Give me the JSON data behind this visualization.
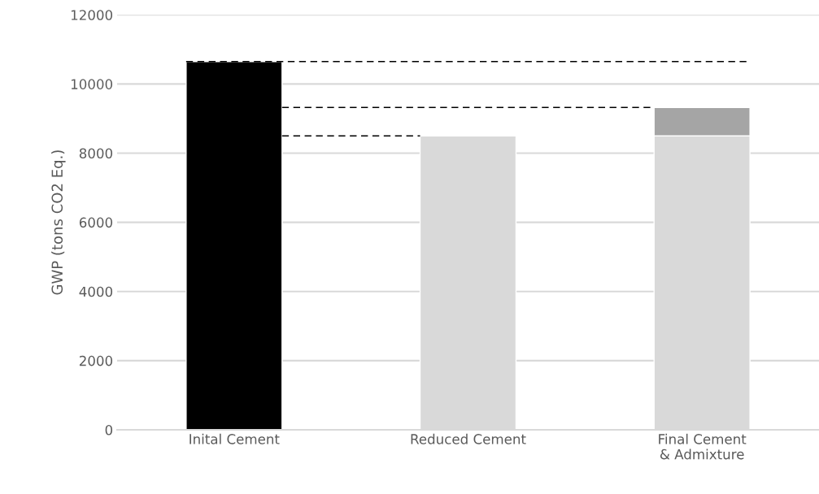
{
  "chart_data": {
    "type": "bar",
    "stacked": true,
    "categories": [
      "Inital Cement",
      "Reduced Cement",
      "Final Cement\n& Admixture"
    ],
    "ylabel": "GWP (tons CO2 Eq.)",
    "series": [
      {
        "colors": [
          "#000000",
          "#d9d9d9",
          "#d9d9d9"
        ],
        "values": [
          10650,
          8500,
          8500
        ]
      },
      {
        "color": "#a5a5a5",
        "values": [
          null,
          null,
          820
        ]
      }
    ],
    "ref_lines": [
      {
        "axis": "y",
        "value": 10650,
        "color": "#000000",
        "line_style": "dashed"
      },
      {
        "axis": "y",
        "value": 9320,
        "color": "#000000",
        "line_style": "dashed"
      },
      {
        "axis": "y",
        "value": 8500,
        "color": "#000000",
        "line_style": "dashed"
      }
    ],
    "ylim": [
      0,
      12000
    ],
    "yticks": [
      0,
      2000,
      4000,
      6000,
      8000,
      10000,
      12000
    ],
    "grid": "y",
    "legend": false
  }
}
